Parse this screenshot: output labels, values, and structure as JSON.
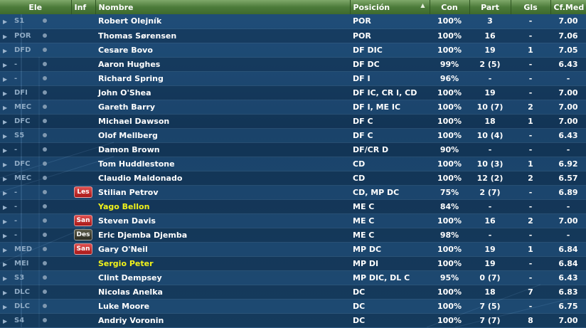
{
  "header": {
    "ele": "Ele",
    "inf": "Inf",
    "nombre": "Nombre",
    "posicion": "Posición",
    "con": "Con",
    "part": "Part",
    "gls": "Gls",
    "cfmed": "Cf.Med",
    "sort_indicator": "▲"
  },
  "colors": {
    "header_bg": "#4c7b3a",
    "highlight_name": "#f2f21a",
    "badge_red": "#c02828",
    "badge_dark": "#3a3a2e"
  },
  "rows": [
    {
      "ele": "S1",
      "inf": "",
      "name": "Robert Olejník",
      "pos": "POR",
      "con": "100%",
      "part": "3",
      "gls": "-",
      "cf": "7.00"
    },
    {
      "ele": "POR",
      "inf": "",
      "name": "Thomas Sørensen",
      "pos": "POR",
      "con": "100%",
      "part": "16",
      "gls": "-",
      "cf": "7.06"
    },
    {
      "ele": "DFD",
      "inf": "",
      "name": "Cesare Bovo",
      "pos": "DF DIC",
      "con": "100%",
      "part": "19",
      "gls": "1",
      "cf": "7.05"
    },
    {
      "ele": "-",
      "inf": "",
      "name": "Aaron Hughes",
      "pos": "DF DC",
      "con": "99%",
      "part": "2 (5)",
      "gls": "-",
      "cf": "6.43"
    },
    {
      "ele": "-",
      "inf": "",
      "name": "Richard Spring",
      "pos": "DF I",
      "con": "96%",
      "part": "-",
      "gls": "-",
      "cf": "-"
    },
    {
      "ele": "DFI",
      "inf": "",
      "name": "John O'Shea",
      "pos": "DF IC, CR I, CD",
      "con": "100%",
      "part": "19",
      "gls": "-",
      "cf": "7.00"
    },
    {
      "ele": "MEC",
      "inf": "",
      "name": "Gareth Barry",
      "pos": "DF I, ME IC",
      "con": "100%",
      "part": "10 (7)",
      "gls": "2",
      "cf": "7.00"
    },
    {
      "ele": "DFC",
      "inf": "",
      "name": "Michael Dawson",
      "pos": "DF C",
      "con": "100%",
      "part": "18",
      "gls": "1",
      "cf": "7.00"
    },
    {
      "ele": "S5",
      "inf": "",
      "name": "Olof Mellberg",
      "pos": "DF C",
      "con": "100%",
      "part": "10 (4)",
      "gls": "-",
      "cf": "6.43"
    },
    {
      "ele": "-",
      "inf": "",
      "name": "Damon Brown",
      "pos": "DF/CR D",
      "con": "90%",
      "part": "-",
      "gls": "-",
      "cf": "-"
    },
    {
      "ele": "DFC",
      "inf": "",
      "name": "Tom Huddlestone",
      "pos": "CD",
      "con": "100%",
      "part": "10 (3)",
      "gls": "1",
      "cf": "6.92"
    },
    {
      "ele": "MEC",
      "inf": "",
      "name": "Claudio Maldonado",
      "pos": "CD",
      "con": "100%",
      "part": "12 (2)",
      "gls": "2",
      "cf": "6.57"
    },
    {
      "ele": "-",
      "inf": "Les",
      "name": "Stilian Petrov",
      "pos": "CD, MP DC",
      "con": "75%",
      "part": "2 (7)",
      "gls": "-",
      "cf": "6.89"
    },
    {
      "ele": "-",
      "inf": "",
      "name": "Yago Bellon",
      "pos": "ME C",
      "con": "84%",
      "part": "-",
      "gls": "-",
      "cf": "-",
      "highlight": true
    },
    {
      "ele": "-",
      "inf": "San",
      "name": "Steven Davis",
      "pos": "ME C",
      "con": "100%",
      "part": "16",
      "gls": "2",
      "cf": "7.00"
    },
    {
      "ele": "-",
      "inf": "Des",
      "name": "Eric Djemba Djemba",
      "pos": "ME C",
      "con": "98%",
      "part": "-",
      "gls": "-",
      "cf": "-"
    },
    {
      "ele": "MED",
      "inf": "San",
      "name": "Gary O'Neil",
      "pos": "MP DC",
      "con": "100%",
      "part": "19",
      "gls": "1",
      "cf": "6.84"
    },
    {
      "ele": "MEI",
      "inf": "",
      "name": "Sergio Peter",
      "pos": "MP DI",
      "con": "100%",
      "part": "19",
      "gls": "-",
      "cf": "6.84",
      "highlight": true
    },
    {
      "ele": "S3",
      "inf": "",
      "name": "Clint Dempsey",
      "pos": "MP DIC, DL C",
      "con": "95%",
      "part": "0 (7)",
      "gls": "-",
      "cf": "6.43"
    },
    {
      "ele": "DLC",
      "inf": "",
      "name": "Nicolas Anelka",
      "pos": "DC",
      "con": "100%",
      "part": "18",
      "gls": "7",
      "cf": "6.83"
    },
    {
      "ele": "DLC",
      "inf": "",
      "name": "Luke Moore",
      "pos": "DC",
      "con": "100%",
      "part": "7 (5)",
      "gls": "-",
      "cf": "6.75"
    },
    {
      "ele": "S4",
      "inf": "",
      "name": "Andriy Voronin",
      "pos": "DC",
      "con": "100%",
      "part": "7 (7)",
      "gls": "8",
      "cf": "7.00"
    }
  ]
}
